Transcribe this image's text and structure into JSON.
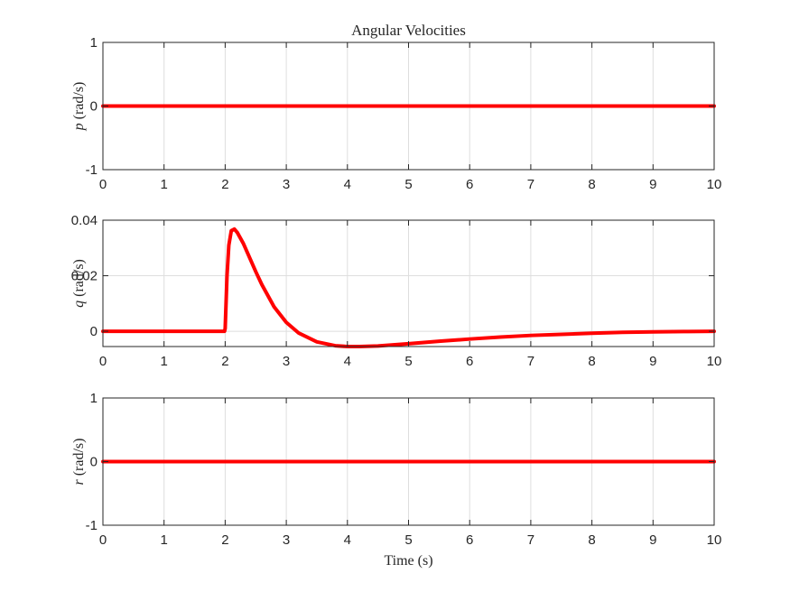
{
  "colors": {
    "series": "#ff0000",
    "axes": "#262626",
    "grid": "#dedede",
    "background": "#ffffff"
  },
  "chart_data": [
    {
      "type": "line",
      "title": "Angular Velocities",
      "xlabel": "",
      "ylabel_var": "p",
      "ylabel_unit": " (rad/s)",
      "xlim": [
        0,
        10
      ],
      "ylim": [
        -1,
        1
      ],
      "xticks": [
        0,
        1,
        2,
        3,
        4,
        5,
        6,
        7,
        8,
        9,
        10
      ],
      "yticks": [
        -1,
        0,
        1
      ],
      "ytick_labels": [
        "-1",
        "0",
        "1"
      ],
      "grid": true,
      "series": [
        {
          "x": [
            0,
            10
          ],
          "y": [
            0,
            0
          ]
        }
      ]
    },
    {
      "type": "line",
      "title": "",
      "xlabel": "",
      "ylabel_var": "q",
      "ylabel_unit": " (rad/s)",
      "xlim": [
        0,
        10
      ],
      "ylim": [
        -0.0055,
        0.04
      ],
      "xticks": [
        0,
        1,
        2,
        3,
        4,
        5,
        6,
        7,
        8,
        9,
        10
      ],
      "yticks": [
        0,
        0.02,
        0.04
      ],
      "ytick_labels": [
        "0",
        "0.02",
        "0.04"
      ],
      "grid": true,
      "series": [
        {
          "x": [
            0,
            1,
            1.99,
            2.0,
            2.03,
            2.06,
            2.1,
            2.15,
            2.2,
            2.3,
            2.4,
            2.5,
            2.6,
            2.8,
            3.0,
            3.2,
            3.5,
            3.8,
            4.0,
            4.2,
            4.5,
            5.0,
            5.5,
            6.0,
            6.5,
            7.0,
            7.5,
            8.0,
            8.5,
            9.0,
            9.5,
            10.0
          ],
          "y": [
            0,
            0,
            0,
            0.001,
            0.02,
            0.031,
            0.0362,
            0.0368,
            0.0355,
            0.0315,
            0.0265,
            0.0215,
            0.0168,
            0.0088,
            0.0032,
            -0.0006,
            -0.0038,
            -0.0052,
            -0.0055,
            -0.0055,
            -0.0053,
            -0.0045,
            -0.0036,
            -0.0028,
            -0.0021,
            -0.0015,
            -0.0011,
            -0.0007,
            -0.0004,
            -0.0002,
            -0.0001,
            0
          ]
        }
      ]
    },
    {
      "type": "line",
      "title": "",
      "xlabel": "Time (s)",
      "ylabel_var": "r",
      "ylabel_unit": " (rad/s)",
      "xlim": [
        0,
        10
      ],
      "ylim": [
        -1,
        1
      ],
      "xticks": [
        0,
        1,
        2,
        3,
        4,
        5,
        6,
        7,
        8,
        9,
        10
      ],
      "yticks": [
        -1,
        0,
        1
      ],
      "ytick_labels": [
        "-1",
        "0",
        "1"
      ],
      "grid": true,
      "series": [
        {
          "x": [
            0,
            10
          ],
          "y": [
            0,
            0
          ]
        }
      ]
    }
  ]
}
